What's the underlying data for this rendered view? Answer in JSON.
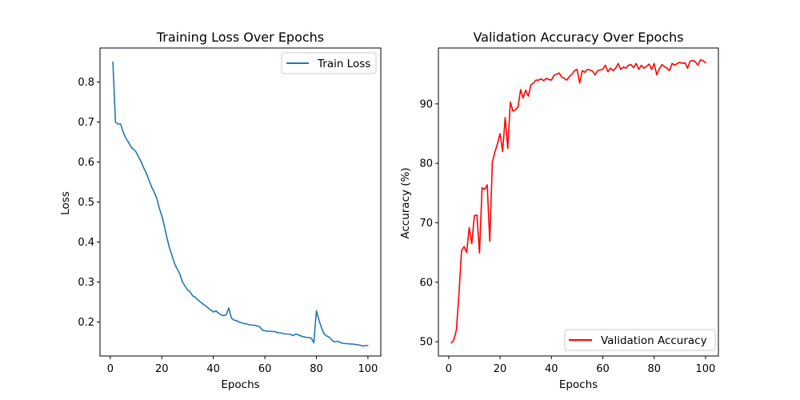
{
  "chart_data": [
    {
      "type": "line",
      "title": "Training Loss Over Epochs",
      "xlabel": "Epochs",
      "ylabel": "Loss",
      "xlim": [
        -4,
        105
      ],
      "ylim": [
        0.115,
        0.885
      ],
      "xticks": [
        0,
        20,
        40,
        60,
        80,
        100
      ],
      "yticks": [
        0.2,
        0.3,
        0.4,
        0.5,
        0.6,
        0.7,
        0.8
      ],
      "grid": false,
      "legend_position": "top-right",
      "series": [
        {
          "name": "Train Loss",
          "color": "#1f77b4",
          "x": [
            1,
            2,
            3,
            4,
            5,
            6,
            7,
            8,
            9,
            10,
            11,
            12,
            13,
            14,
            15,
            16,
            17,
            18,
            19,
            20,
            21,
            22,
            23,
            24,
            25,
            26,
            27,
            28,
            29,
            30,
            31,
            32,
            33,
            34,
            35,
            36,
            37,
            38,
            39,
            40,
            41,
            42,
            43,
            44,
            45,
            46,
            47,
            48,
            49,
            50,
            51,
            52,
            53,
            54,
            55,
            56,
            57,
            58,
            59,
            60,
            61,
            62,
            63,
            64,
            65,
            66,
            67,
            68,
            69,
            70,
            71,
            72,
            73,
            74,
            75,
            76,
            77,
            78,
            79,
            80,
            81,
            82,
            83,
            84,
            85,
            86,
            87,
            88,
            89,
            90,
            91,
            92,
            93,
            94,
            95,
            96,
            97,
            98,
            99,
            100
          ],
          "y": [
            0.85,
            0.7,
            0.695,
            0.695,
            0.675,
            0.66,
            0.65,
            0.638,
            0.632,
            0.625,
            0.612,
            0.6,
            0.585,
            0.572,
            0.555,
            0.538,
            0.525,
            0.51,
            0.485,
            0.465,
            0.44,
            0.41,
            0.385,
            0.365,
            0.345,
            0.332,
            0.32,
            0.3,
            0.29,
            0.28,
            0.275,
            0.265,
            0.262,
            0.255,
            0.25,
            0.245,
            0.24,
            0.235,
            0.23,
            0.225,
            0.228,
            0.222,
            0.218,
            0.216,
            0.218,
            0.235,
            0.21,
            0.205,
            0.203,
            0.2,
            0.198,
            0.196,
            0.195,
            0.193,
            0.192,
            0.192,
            0.19,
            0.188,
            0.18,
            0.178,
            0.177,
            0.177,
            0.176,
            0.176,
            0.173,
            0.173,
            0.171,
            0.17,
            0.17,
            0.169,
            0.166,
            0.17,
            0.168,
            0.165,
            0.163,
            0.162,
            0.161,
            0.16,
            0.148,
            0.228,
            0.205,
            0.185,
            0.17,
            0.165,
            0.162,
            0.155,
            0.15,
            0.152,
            0.15,
            0.147,
            0.146,
            0.146,
            0.145,
            0.145,
            0.144,
            0.143,
            0.142,
            0.14,
            0.141,
            0.141
          ]
        }
      ]
    },
    {
      "type": "line",
      "title": "Validation Accuracy Over Epochs",
      "xlabel": "Epochs",
      "ylabel": "Accuracy (%)",
      "xlim": [
        -4,
        105
      ],
      "ylim": [
        47.6,
        99.4
      ],
      "xticks": [
        0,
        20,
        40,
        60,
        80,
        100
      ],
      "yticks": [
        50,
        60,
        70,
        80,
        90
      ],
      "grid": false,
      "legend_position": "bottom-right",
      "series": [
        {
          "name": "Validation Accuracy",
          "color": "#ff0000",
          "x": [
            1,
            2,
            3,
            4,
            5,
            6,
            7,
            8,
            9,
            10,
            11,
            12,
            13,
            14,
            15,
            16,
            17,
            18,
            19,
            20,
            21,
            22,
            23,
            24,
            25,
            26,
            27,
            28,
            29,
            30,
            31,
            32,
            33,
            34,
            35,
            36,
            37,
            38,
            39,
            40,
            41,
            42,
            43,
            44,
            45,
            46,
            47,
            48,
            49,
            50,
            51,
            52,
            53,
            54,
            55,
            56,
            57,
            58,
            59,
            60,
            61,
            62,
            63,
            64,
            65,
            66,
            67,
            68,
            69,
            70,
            71,
            72,
            73,
            74,
            75,
            76,
            77,
            78,
            79,
            80,
            81,
            82,
            83,
            84,
            85,
            86,
            87,
            88,
            89,
            90,
            91,
            92,
            93,
            94,
            95,
            96,
            97,
            98,
            99,
            100
          ],
          "y": [
            49.8,
            50.3,
            52.0,
            58.0,
            65.3,
            66.0,
            65.0,
            69.2,
            66.5,
            71.2,
            71.3,
            64.9,
            75.9,
            75.6,
            76.4,
            66.9,
            80.2,
            81.9,
            83.3,
            85.0,
            82.0,
            87.7,
            82.5,
            90.3,
            88.8,
            89.0,
            89.5,
            92.4,
            91.0,
            92.3,
            91.3,
            93.2,
            93.5,
            94.0,
            94.0,
            94.2,
            93.9,
            94.3,
            94.1,
            94.0,
            94.8,
            95.0,
            95.2,
            94.5,
            94.3,
            94.0,
            94.6,
            95.0,
            95.6,
            95.8,
            93.5,
            95.6,
            95.3,
            95.8,
            95.7,
            95.5,
            94.9,
            95.6,
            95.7,
            95.8,
            96.5,
            95.4,
            96.0,
            95.6,
            96.0,
            96.8,
            95.8,
            96.2,
            96.0,
            96.5,
            96.6,
            96.1,
            96.8,
            95.8,
            96.5,
            96.0,
            96.3,
            96.7,
            95.8,
            96.8,
            94.9,
            95.9,
            96.6,
            96.3,
            96.0,
            95.6,
            96.8,
            96.5,
            96.8,
            97.0,
            96.8,
            96.9,
            96.0,
            97.2,
            97.3,
            97.1,
            96.5,
            97.4,
            97.3,
            96.9
          ]
        }
      ]
    }
  ]
}
